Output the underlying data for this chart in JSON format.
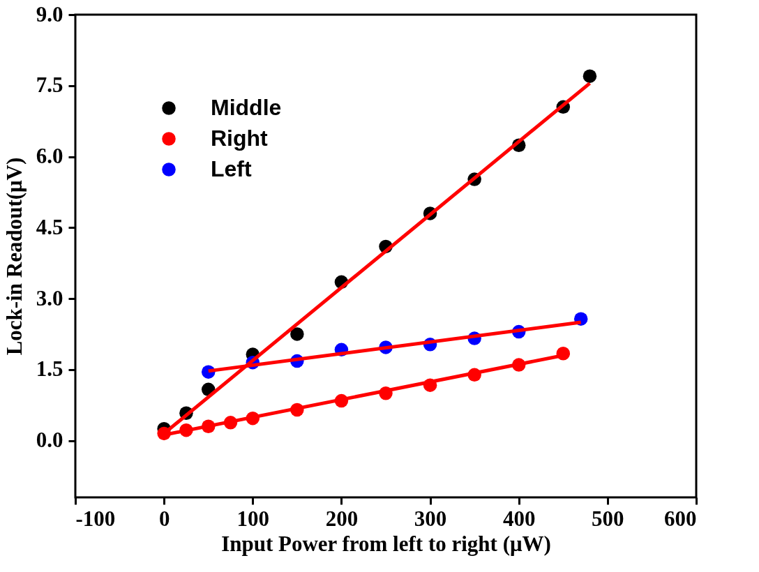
{
  "chart_data": {
    "type": "scatter",
    "xlabel": "Input Power from left to right (μW)",
    "ylabel": "Lock-in Readout(μV)",
    "xlim": [
      -100,
      600
    ],
    "xticks": [
      -100,
      0,
      100,
      200,
      300,
      400,
      500,
      600
    ],
    "ylim": [
      -1.2,
      9.0
    ],
    "yticks": [
      {
        "value": 0,
        "label": "0.0"
      },
      {
        "value": 1.5,
        "label": "1.5"
      },
      {
        "value": 3,
        "label": "3.0"
      },
      {
        "value": 4.5,
        "label": "4.5"
      },
      {
        "value": 6,
        "label": "6.0"
      },
      {
        "value": 7.5,
        "label": "7.5"
      },
      {
        "value": 9,
        "label": "9.0"
      }
    ],
    "grid": false,
    "legend": "top left",
    "series": [
      {
        "name": "Middle",
        "color": "#000000",
        "marker": "circle",
        "x": [
          0,
          25,
          50,
          100,
          150,
          200,
          250,
          300,
          350,
          400,
          450,
          480
        ],
        "values": [
          0.25,
          0.58,
          1.08,
          1.82,
          2.25,
          3.35,
          4.1,
          4.8,
          5.52,
          6.24,
          7.05,
          7.7
        ]
      },
      {
        "name": "Right",
        "color": "#ff0000",
        "marker": "circle",
        "x": [
          0,
          25,
          50,
          75,
          100,
          150,
          200,
          250,
          300,
          350,
          400,
          450
        ],
        "values": [
          0.15,
          0.22,
          0.3,
          0.38,
          0.47,
          0.65,
          0.84,
          1.0,
          1.17,
          1.39,
          1.6,
          1.84
        ]
      },
      {
        "name": "Left",
        "color": "#0000ff",
        "marker": "circle",
        "x": [
          50,
          100,
          150,
          200,
          250,
          300,
          350,
          400,
          470
        ],
        "values": [
          1.45,
          1.65,
          1.68,
          1.92,
          1.97,
          2.03,
          2.16,
          2.3,
          2.57
        ]
      },
      {
        "color": "#ff0000",
        "type": "line",
        "x": [
          0,
          480
        ],
        "values": [
          0.15,
          7.55
        ]
      },
      {
        "color": "#ff0000",
        "type": "line",
        "x": [
          0,
          450
        ],
        "values": [
          0.12,
          1.8
        ]
      },
      {
        "color": "#ff0000",
        "type": "line",
        "x": [
          50,
          470
        ],
        "values": [
          1.47,
          2.5
        ]
      }
    ]
  }
}
